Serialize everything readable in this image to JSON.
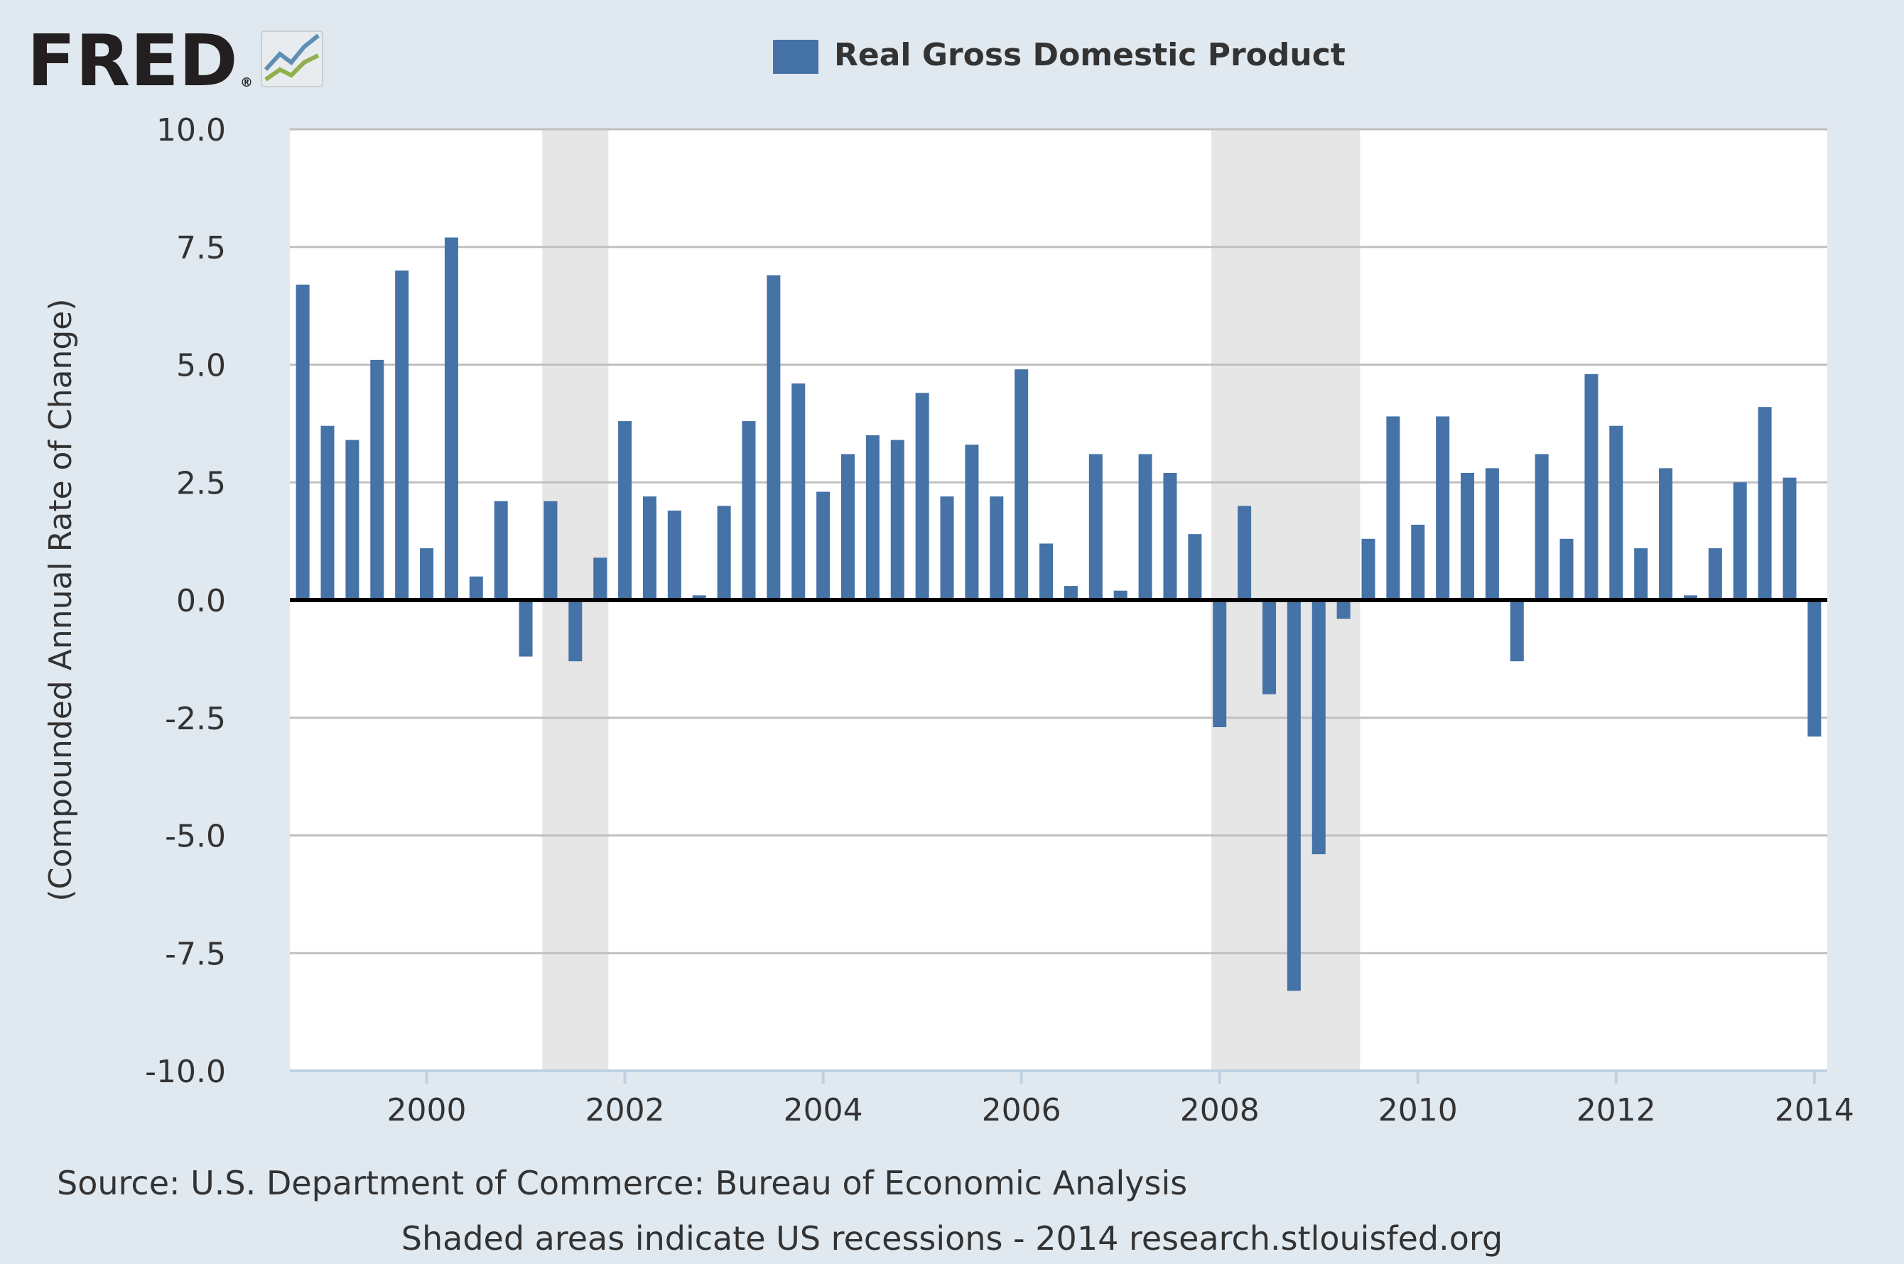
{
  "logo": {
    "text": "FRED",
    "registered": "®"
  },
  "chart_data": {
    "type": "bar",
    "title": "",
    "legend": [
      {
        "name": "Real Gross Domestic Product",
        "color": "#4572a7"
      }
    ],
    "legend_placement": "top-center",
    "xlabel": "",
    "ylabel": "(Compounded Annual Rate of Change)",
    "ylim": [
      -10,
      10
    ],
    "xlim": [
      "1998-10-01",
      "2014-01-01"
    ],
    "yticks": [
      "10.0",
      "7.5",
      "5.0",
      "2.5",
      "0.0",
      "-2.5",
      "-5.0",
      "-7.5",
      "-10.0"
    ],
    "xticks": [
      "2000",
      "2002",
      "2004",
      "2006",
      "2008",
      "2010",
      "2012",
      "2014"
    ],
    "grid": true,
    "colors": {
      "bar": "#4572a7",
      "recession": "#e6e6e6",
      "zero_line": "#000000",
      "plot_bg": "#ffffff",
      "page_bg": "#e1e9f0",
      "grid": "#c0c0c0"
    },
    "recessions": [
      {
        "start": "2001-03-01",
        "end": "2001-11-01"
      },
      {
        "start": "2007-12-01",
        "end": "2009-06-01"
      }
    ],
    "series": [
      {
        "name": "Real Gross Domestic Product",
        "x": [
          "1998-10-01",
          "1999-01-01",
          "1999-04-01",
          "1999-07-01",
          "1999-10-01",
          "2000-01-01",
          "2000-04-01",
          "2000-07-01",
          "2000-10-01",
          "2001-01-01",
          "2001-04-01",
          "2001-07-01",
          "2001-10-01",
          "2002-01-01",
          "2002-04-01",
          "2002-07-01",
          "2002-10-01",
          "2003-01-01",
          "2003-04-01",
          "2003-07-01",
          "2003-10-01",
          "2004-01-01",
          "2004-04-01",
          "2004-07-01",
          "2004-10-01",
          "2005-01-01",
          "2005-04-01",
          "2005-07-01",
          "2005-10-01",
          "2006-01-01",
          "2006-04-01",
          "2006-07-01",
          "2006-10-01",
          "2007-01-01",
          "2007-04-01",
          "2007-07-01",
          "2007-10-01",
          "2008-01-01",
          "2008-04-01",
          "2008-07-01",
          "2008-10-01",
          "2009-01-01",
          "2009-04-01",
          "2009-07-01",
          "2009-10-01",
          "2010-01-01",
          "2010-04-01",
          "2010-07-01",
          "2010-10-01",
          "2011-01-01",
          "2011-04-01",
          "2011-07-01",
          "2011-10-01",
          "2012-01-01",
          "2012-04-01",
          "2012-07-01",
          "2012-10-01",
          "2013-01-01",
          "2013-04-01",
          "2013-07-01",
          "2013-10-01",
          "2014-01-01"
        ],
        "values": [
          6.7,
          3.7,
          3.4,
          5.1,
          7.0,
          1.1,
          7.7,
          0.5,
          2.1,
          -1.2,
          2.1,
          -1.3,
          0.9,
          3.8,
          2.2,
          1.9,
          0.1,
          2.0,
          3.8,
          6.9,
          4.6,
          2.3,
          3.1,
          3.5,
          3.4,
          4.4,
          2.2,
          3.3,
          2.2,
          4.9,
          1.2,
          0.3,
          3.1,
          0.2,
          3.1,
          2.7,
          1.4,
          -2.7,
          2.0,
          -2.0,
          -8.3,
          -5.4,
          -0.4,
          1.3,
          3.9,
          1.6,
          3.9,
          2.7,
          2.8,
          -1.3,
          3.1,
          1.3,
          4.8,
          3.7,
          1.1,
          2.8,
          0.1,
          1.1,
          2.5,
          4.1,
          2.6,
          -2.9
        ]
      }
    ]
  },
  "footer": {
    "source": "Source: U.S. Department of Commerce: Bureau of Economic Analysis",
    "note": "Shaded areas indicate US recessions - 2014 research.stlouisfed.org"
  }
}
